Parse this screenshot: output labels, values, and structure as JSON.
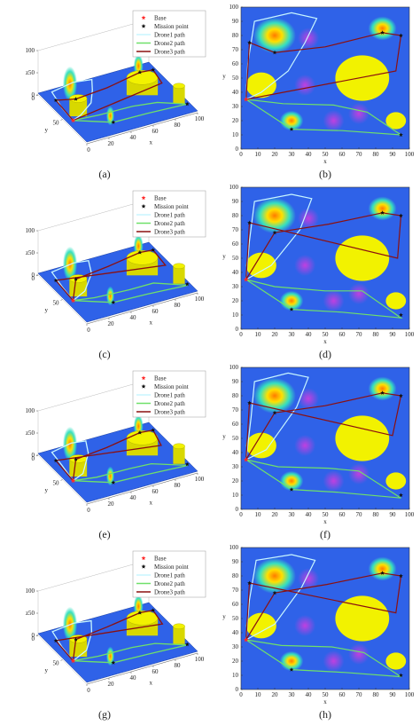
{
  "legend": {
    "base": "Base",
    "mission": "Mission point",
    "drone1": "Drone1 path",
    "drone2": "Drone2 path",
    "drone3": "Drone3 path"
  },
  "colors": {
    "drone1": "#c8f6ff",
    "drone2": "#6fe06a",
    "drone3": "#8b1010",
    "base": "#ff2a2a",
    "mission": "#111111",
    "terrain": "#2f62e8",
    "obstacle": "#f2f200"
  },
  "axes3d": {
    "x_label": "x",
    "y_label": "y",
    "z_label": "z",
    "xticks": [
      0,
      20,
      40,
      60,
      80,
      100
    ],
    "yticks": [
      0,
      50
    ],
    "zticks": [
      0,
      50,
      100
    ]
  },
  "axes2d": {
    "x_label": "x",
    "y_label": "y",
    "xlim": [
      0,
      100
    ],
    "ylim": [
      0,
      100
    ],
    "xticks": [
      0,
      10,
      20,
      30,
      40,
      50,
      60,
      70,
      80,
      90,
      100
    ],
    "yticks": [
      0,
      10,
      20,
      30,
      40,
      50,
      60,
      70,
      80,
      90,
      100
    ]
  },
  "obstacles": [
    {
      "x": 12,
      "y": 45,
      "r": 9
    },
    {
      "x": 72,
      "y": 50,
      "r": 16
    },
    {
      "x": 92,
      "y": 20,
      "r": 6
    }
  ],
  "threats": [
    {
      "x": 20,
      "y": 80,
      "r": 9
    },
    {
      "x": 84,
      "y": 85,
      "r": 6
    },
    {
      "x": 30,
      "y": 20,
      "r": 5
    }
  ],
  "base": [
    3,
    35
  ],
  "mission_points": [
    [
      5,
      75
    ],
    [
      20,
      68
    ],
    [
      84,
      82
    ],
    [
      95,
      80
    ],
    [
      30,
      14
    ],
    [
      95,
      10
    ]
  ],
  "rows": [
    {
      "left_label": "(a)",
      "right_label": "(b)",
      "drone1": [
        [
          3,
          35
        ],
        [
          4,
          60
        ],
        [
          8,
          90
        ],
        [
          30,
          96
        ],
        [
          45,
          92
        ],
        [
          38,
          75
        ],
        [
          28,
          55
        ],
        [
          12,
          40
        ],
        [
          3,
          35
        ]
      ],
      "drone2": [
        [
          3,
          35
        ],
        [
          25,
          32
        ],
        [
          55,
          31
        ],
        [
          75,
          26
        ],
        [
          95,
          10
        ],
        [
          60,
          13
        ],
        [
          30,
          14
        ],
        [
          3,
          35
        ]
      ],
      "drone3": [
        [
          3,
          35
        ],
        [
          5,
          75
        ],
        [
          20,
          68
        ],
        [
          50,
          72
        ],
        [
          84,
          82
        ],
        [
          95,
          80
        ],
        [
          92,
          55
        ],
        [
          3,
          35
        ]
      ]
    },
    {
      "left_label": "(c)",
      "right_label": "(d)",
      "drone1": [
        [
          3,
          35
        ],
        [
          5,
          62
        ],
        [
          8,
          90
        ],
        [
          30,
          95
        ],
        [
          42,
          92
        ],
        [
          35,
          70
        ],
        [
          18,
          45
        ],
        [
          3,
          35
        ]
      ],
      "drone2": [
        [
          3,
          35
        ],
        [
          20,
          30
        ],
        [
          50,
          27
        ],
        [
          72,
          27
        ],
        [
          95,
          8
        ],
        [
          60,
          12
        ],
        [
          30,
          14
        ],
        [
          3,
          35
        ]
      ],
      "drone3": [
        [
          3,
          35
        ],
        [
          20,
          68
        ],
        [
          52,
          74
        ],
        [
          84,
          82
        ],
        [
          95,
          80
        ],
        [
          93,
          50
        ],
        [
          5,
          75
        ],
        [
          3,
          35
        ]
      ]
    },
    {
      "left_label": "(e)",
      "right_label": "(f)",
      "drone1": [
        [
          3,
          35
        ],
        [
          6,
          65
        ],
        [
          8,
          90
        ],
        [
          28,
          96
        ],
        [
          40,
          93
        ],
        [
          33,
          72
        ],
        [
          15,
          42
        ],
        [
          3,
          35
        ]
      ],
      "drone2": [
        [
          3,
          35
        ],
        [
          22,
          30
        ],
        [
          52,
          29
        ],
        [
          70,
          27
        ],
        [
          95,
          8
        ],
        [
          58,
          12
        ],
        [
          30,
          14
        ],
        [
          3,
          35
        ]
      ],
      "drone3": [
        [
          3,
          35
        ],
        [
          20,
          68
        ],
        [
          50,
          73
        ],
        [
          84,
          82
        ],
        [
          95,
          80
        ],
        [
          90,
          52
        ],
        [
          5,
          75
        ],
        [
          3,
          35
        ]
      ]
    },
    {
      "left_label": "(g)",
      "right_label": "(h)",
      "drone1": [
        [
          3,
          35
        ],
        [
          5,
          63
        ],
        [
          9,
          91
        ],
        [
          30,
          95
        ],
        [
          44,
          91
        ],
        [
          36,
          72
        ],
        [
          20,
          46
        ],
        [
          3,
          35
        ]
      ],
      "drone2": [
        [
          3,
          35
        ],
        [
          24,
          31
        ],
        [
          54,
          30
        ],
        [
          73,
          26
        ],
        [
          95,
          9
        ],
        [
          62,
          12
        ],
        [
          30,
          14
        ],
        [
          3,
          35
        ]
      ],
      "drone3": [
        [
          3,
          35
        ],
        [
          20,
          68
        ],
        [
          51,
          74
        ],
        [
          84,
          82
        ],
        [
          95,
          80
        ],
        [
          92,
          54
        ],
        [
          5,
          75
        ],
        [
          3,
          35
        ]
      ]
    }
  ]
}
